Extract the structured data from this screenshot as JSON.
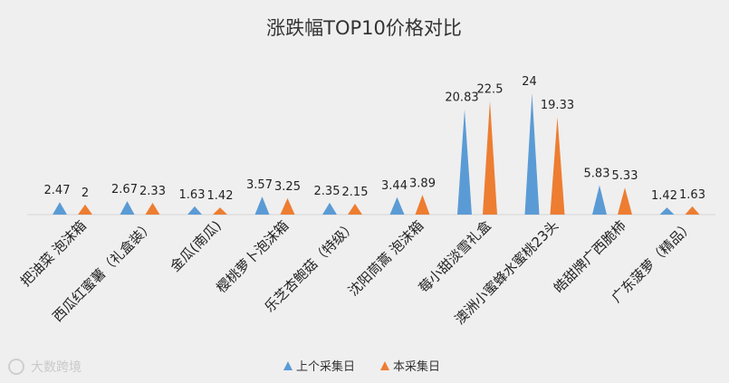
{
  "chart_data": {
    "type": "bar",
    "title": "涨跌幅TOP10价格对比",
    "categories": [
      "把油菜 泡沫箱",
      "西瓜红蜜薯（礼盒装）",
      "金瓜(南瓜)",
      "樱桃萝卜泡沫箱",
      "乐芝杏鲍菇（特级）",
      "沈阳茼蒿 泡沫箱",
      "莓小甜淡雪礼盒",
      "澳洲小蜜蜂水蜜桃23头",
      "皓甜牌广西脆柿",
      "广东菠萝（精品）"
    ],
    "series": [
      {
        "name": "上个采集日",
        "color": "#5b9bd5",
        "values": [
          2.47,
          2.67,
          1.63,
          3.57,
          2.35,
          3.44,
          20.83,
          24,
          5.83,
          1.42
        ],
        "labels": [
          "2.47",
          "2.67",
          "1.63",
          "3.57",
          "2.35",
          "3.44",
          "20.83",
          "24",
          "5.83",
          "1.42"
        ]
      },
      {
        "name": "本采集日",
        "color": "#ed7d31",
        "values": [
          2,
          2.33,
          1.42,
          3.25,
          2.15,
          3.89,
          22.5,
          19.33,
          5.33,
          1.63
        ],
        "labels": [
          "2",
          "2.33",
          "1.42",
          "3.25",
          "2.15",
          "3.89",
          "22.5",
          "19.33",
          "5.33",
          "1.63"
        ]
      }
    ],
    "mark_shape": "triangle",
    "legend_position": "bottom",
    "grid": false,
    "xlabel": "",
    "ylabel": "",
    "ylim": [
      0,
      24
    ]
  },
  "watermark": "大数跨境"
}
